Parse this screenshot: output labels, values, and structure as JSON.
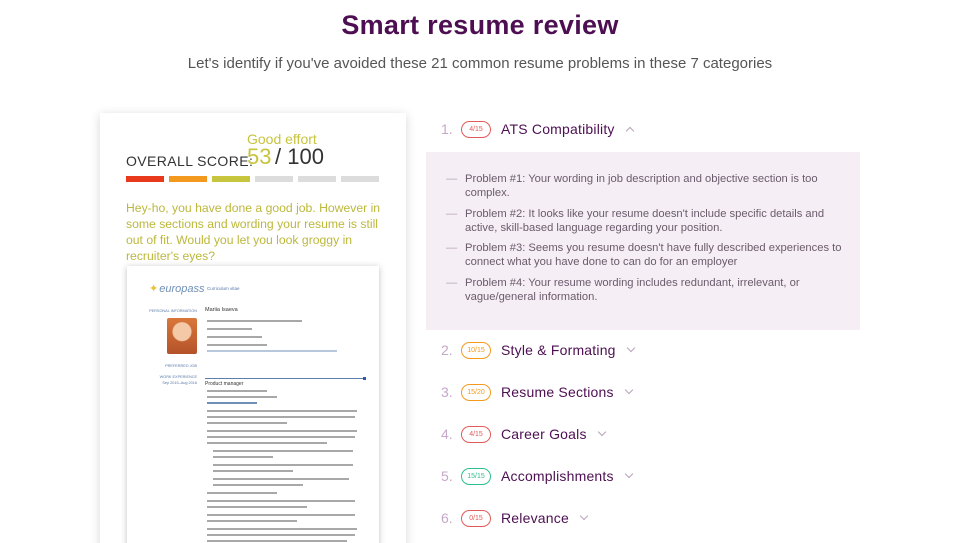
{
  "header": {
    "title": "Smart resume review",
    "subtitle": "Let's identify if you've avoided these 21 common resume problems in these 7 categories"
  },
  "score": {
    "label": "OVERALL SCORE:",
    "verdict": "Good effort",
    "value": "53",
    "max": "/ 100",
    "segments_filled": 3,
    "segment_colors": [
      "#e8391d",
      "#f39a1e",
      "#c7c43d",
      "#dcdcdc",
      "#dcdcdc",
      "#dcdcdc"
    ],
    "message": "Hey-ho, you have done a good job. However in some sections and wording your resume is still out of fit. Would you let you look groggy in recruiter's eyes?"
  },
  "resume_preview": {
    "logo": "europass",
    "doc_type": "Curriculum vitae",
    "section_personal": "PERSONAL INFORMATION",
    "name": "Mariia Isaeva",
    "section_job": "PREFERRED JOB",
    "section_work": "WORK EXPERIENCE",
    "job_date": "Sep 2015–Aug 2016",
    "job_title": "Product manager"
  },
  "categories": [
    {
      "num": "1.",
      "badge": "4/15",
      "badge_color": "#e25a5a",
      "title": "ATS Compatibility",
      "expanded": true
    },
    {
      "num": "2.",
      "badge": "10/15",
      "badge_color": "#f39a1e",
      "title": "Style & Formating",
      "expanded": false
    },
    {
      "num": "3.",
      "badge": "15/20",
      "badge_color": "#f39a1e",
      "title": "Resume Sections",
      "expanded": false
    },
    {
      "num": "4.",
      "badge": "4/15",
      "badge_color": "#e25a5a",
      "title": "Career Goals",
      "expanded": false
    },
    {
      "num": "5.",
      "badge": "15/15",
      "badge_color": "#2cbf8a",
      "title": "Accomplishments",
      "expanded": false
    },
    {
      "num": "6.",
      "badge": "0/15",
      "badge_color": "#e25a5a",
      "title": "Relevance",
      "expanded": false
    }
  ],
  "problems": [
    "Problem #1: Your wording in job description and objective section is too complex.",
    "Problem #2: It looks like your resume doesn't include specific details and active, skill-based language regarding your position.",
    "Problem #3: Seems you resume doesn't have fully described experiences to connect what you have done to can do for an employer",
    "Problem #4: Your resume wording includes redundant, irrelevant, or vague/general information."
  ]
}
